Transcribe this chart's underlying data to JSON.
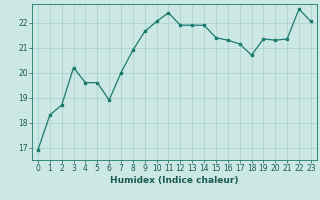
{
  "x": [
    0,
    1,
    2,
    3,
    4,
    5,
    6,
    7,
    8,
    9,
    10,
    11,
    12,
    13,
    14,
    15,
    16,
    17,
    18,
    19,
    20,
    21,
    22,
    23
  ],
  "y": [
    16.9,
    18.3,
    18.7,
    20.2,
    19.6,
    19.6,
    18.9,
    20.0,
    20.9,
    21.65,
    22.05,
    22.4,
    21.9,
    21.9,
    21.9,
    21.4,
    21.3,
    21.15,
    20.7,
    21.35,
    21.3,
    21.35,
    22.55,
    22.05
  ],
  "line_color": "#1a7a6e",
  "marker": "s",
  "marker_size": 2.0,
  "bg_color": "#cce8e4",
  "grid_color": "#aacfcc",
  "axis_color": "#1a7a6e",
  "xlabel": "Humidex (Indice chaleur)",
  "ylabel": "",
  "xlim": [
    -0.5,
    23.5
  ],
  "ylim": [
    16.5,
    22.75
  ],
  "yticks": [
    17,
    18,
    19,
    20,
    21,
    22
  ],
  "xticks": [
    0,
    1,
    2,
    3,
    4,
    5,
    6,
    7,
    8,
    9,
    10,
    11,
    12,
    13,
    14,
    15,
    16,
    17,
    18,
    19,
    20,
    21,
    22,
    23
  ],
  "font_color": "#1a5a50",
  "tick_fontsize": 5.5,
  "xlabel_fontsize": 6.5,
  "linewidth": 0.9
}
